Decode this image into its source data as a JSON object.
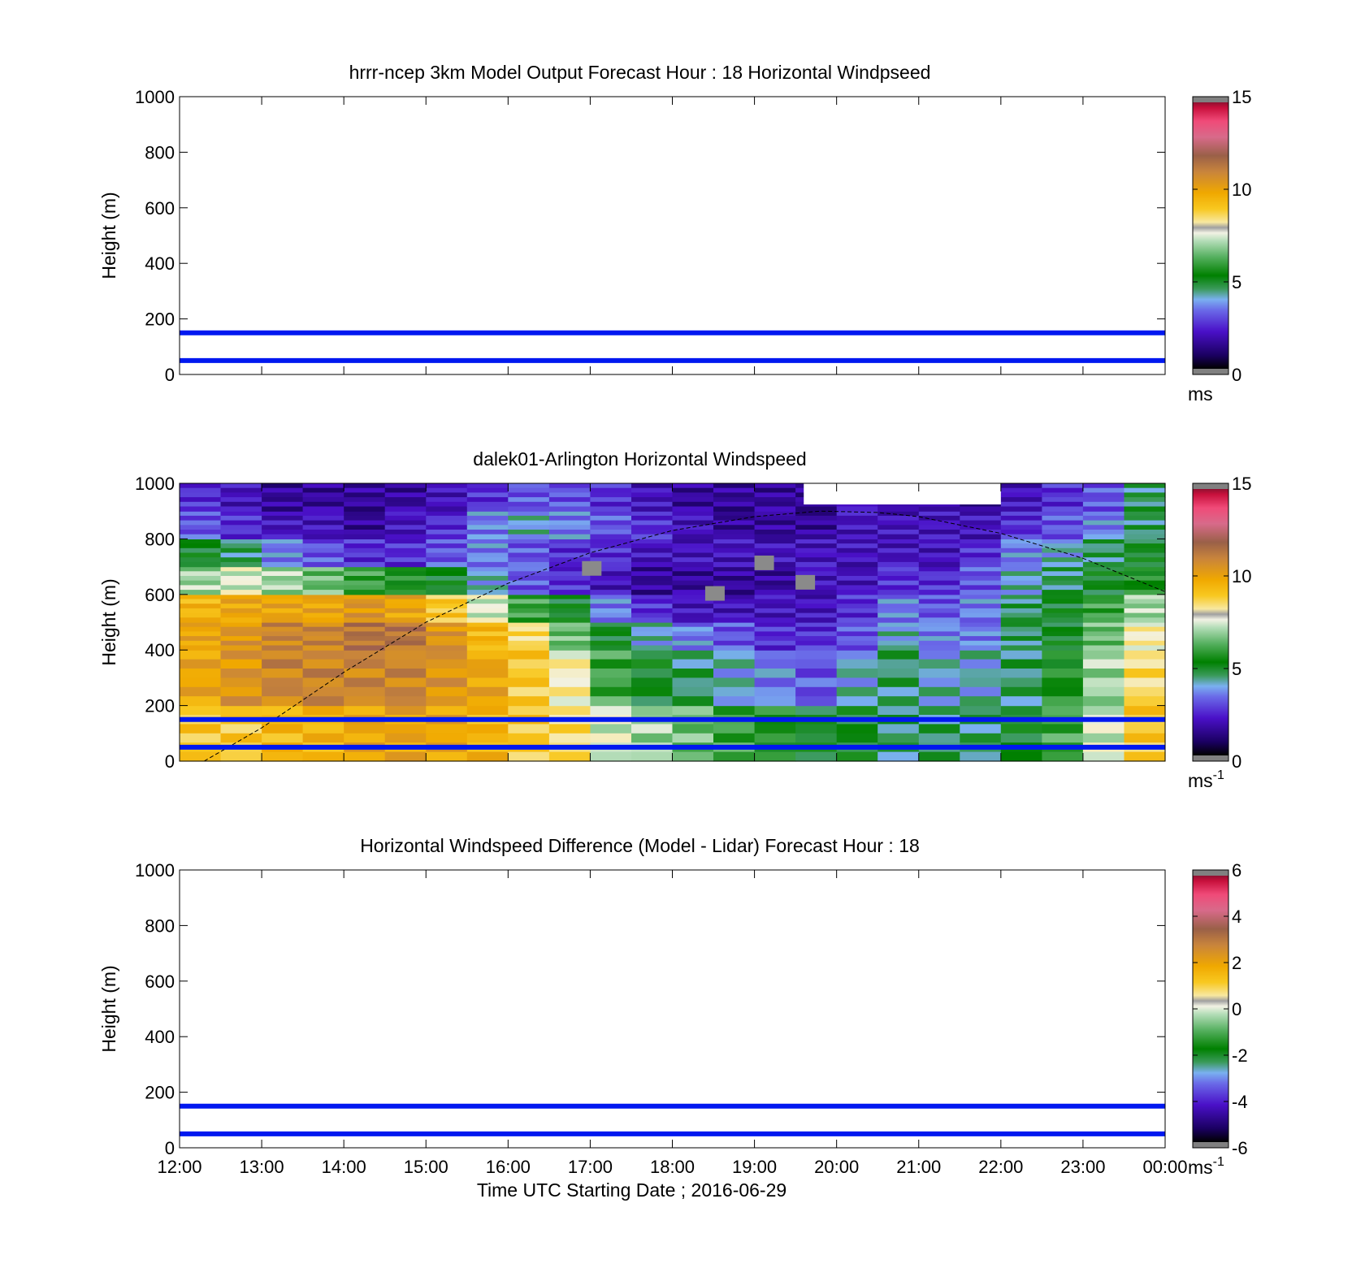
{
  "chart_data": [
    {
      "type": "heatmap",
      "title": "hrrr-ncep 3km Model Output   Forecast Hour : 18 Horizontal Windpseed",
      "ylabel": "Height (m)",
      "ylim": [
        0,
        1000
      ],
      "yticks": [
        0,
        200,
        400,
        600,
        800,
        1000
      ],
      "xlim": [
        "12:00",
        "00:00"
      ],
      "xtick_labels": [],
      "grid": false,
      "reference_lines_m": [
        50,
        150
      ],
      "colorbar": {
        "min": 0,
        "max": 15,
        "ticks": [
          "0",
          "5",
          "10",
          "15"
        ],
        "unit": "ms",
        "unit_sup": ""
      },
      "cells": []
    },
    {
      "type": "heatmap",
      "title": "dalek01-Arlington  Horizontal Windspeed",
      "ylabel": "Height (m)",
      "ylim": [
        0,
        1000
      ],
      "yticks": [
        0,
        200,
        400,
        600,
        800,
        1000
      ],
      "xlim": [
        "12:00",
        "00:00"
      ],
      "xtick_labels": [],
      "grid": false,
      "reference_lines_m": [
        50,
        150
      ],
      "colorbar": {
        "min": 0,
        "max": 15,
        "ticks": [
          "0",
          "5",
          "10",
          "15"
        ],
        "unit": "ms",
        "unit_sup": "-1"
      },
      "time_columns_h": [
        12.0,
        12.5,
        13.0,
        13.5,
        14.0,
        14.5,
        15.0,
        15.5,
        16.0,
        16.5,
        17.0,
        17.5,
        18.0,
        18.5,
        19.0,
        19.5,
        20.0,
        20.5,
        21.0,
        21.5,
        22.0,
        22.5,
        23.0,
        23.5
      ],
      "height_bands_m": [
        [
          0,
          200
        ],
        [
          200,
          400
        ],
        [
          400,
          500
        ],
        [
          500,
          600
        ],
        [
          600,
          700
        ],
        [
          700,
          800
        ],
        [
          800,
          900
        ],
        [
          900,
          1000
        ]
      ],
      "windspeed_ms": [
        [
          9,
          9,
          9.5,
          9.5,
          10,
          10,
          10,
          9.5,
          9,
          8.5,
          7.5,
          7,
          6.5,
          6,
          5.5,
          5,
          5,
          4.5,
          4.5,
          4.5,
          5,
          6,
          7.5,
          9
        ],
        [
          10,
          10.5,
          11,
          11,
          11,
          11,
          10.5,
          10,
          9,
          8,
          6,
          5,
          4.5,
          4,
          3.5,
          3,
          4,
          4.5,
          4,
          4,
          4.5,
          5.5,
          7,
          8.5
        ],
        [
          10,
          10.5,
          11,
          11,
          11.5,
          11.5,
          10.5,
          9.5,
          8.5,
          6.5,
          5,
          4,
          3.5,
          3,
          2.5,
          2.5,
          3,
          4,
          3.5,
          3.5,
          4.5,
          5,
          6.5,
          8
        ],
        [
          9.5,
          10,
          10,
          10,
          10.5,
          10,
          9,
          7.5,
          6,
          5,
          3.5,
          2.5,
          2,
          2,
          2,
          2,
          2.5,
          3.5,
          3,
          3.5,
          4.5,
          5,
          6,
          7
        ],
        [
          7,
          7.5,
          7,
          6.5,
          6,
          5.5,
          5,
          4,
          3,
          2.5,
          2,
          1.5,
          1.5,
          1.5,
          1.5,
          2,
          2,
          2.5,
          2.5,
          3,
          4,
          4.5,
          5,
          5.5
        ],
        [
          5,
          4.5,
          3.5,
          3,
          2.5,
          2.5,
          3,
          3.5,
          3,
          2.5,
          2.5,
          2,
          2,
          2,
          2,
          2,
          2,
          2,
          2,
          2.5,
          3.5,
          4,
          4.5,
          5
        ],
        [
          3,
          2.5,
          2,
          2,
          1.5,
          2,
          2.5,
          3.5,
          4,
          3.5,
          3,
          2.5,
          2,
          1.5,
          1.5,
          1.5,
          2,
          2,
          2,
          2,
          2.5,
          3,
          3.5,
          4.5
        ],
        [
          2.5,
          2,
          1.5,
          1.5,
          1.5,
          1.5,
          2,
          2.5,
          3,
          3,
          2.5,
          2,
          1.5,
          1.5,
          1.5,
          1.5,
          2,
          2,
          1.5,
          1.5,
          2,
          2.5,
          3,
          4.5
        ]
      ],
      "boundary_layer_curve_m": [
        [
          12.3,
          0
        ],
        [
          13.0,
          120
        ],
        [
          14.0,
          320
        ],
        [
          15.0,
          500
        ],
        [
          16.0,
          640
        ],
        [
          17.0,
          750
        ],
        [
          18.0,
          830
        ],
        [
          19.0,
          880
        ],
        [
          19.8,
          900
        ],
        [
          20.5,
          895
        ],
        [
          21.0,
          880
        ],
        [
          22.0,
          820
        ],
        [
          23.0,
          730
        ],
        [
          24.0,
          610
        ]
      ],
      "missing_cells": [
        [
          16.9,
          700
        ],
        [
          19.5,
          650
        ],
        [
          19.0,
          720
        ],
        [
          18.4,
          610
        ]
      ]
    },
    {
      "type": "heatmap",
      "title": "Horizontal Windspeed Difference (Model - Lidar) Forecast Hour : 18",
      "ylabel": "Height (m)",
      "xlabel": "Time UTC  Starting Date ; 2016-06-29",
      "ylim": [
        0,
        1000
      ],
      "yticks": [
        0,
        200,
        400,
        600,
        800,
        1000
      ],
      "xlim": [
        "12:00",
        "00:00"
      ],
      "xtick_labels": [
        "12:00",
        "13:00",
        "14:00",
        "15:00",
        "16:00",
        "17:00",
        "18:00",
        "19:00",
        "20:00",
        "21:00",
        "22:00",
        "23:00",
        "00:00"
      ],
      "grid": false,
      "reference_lines_m": [
        50,
        150
      ],
      "colorbar": {
        "min": -6,
        "max": 6,
        "ticks": [
          "-6",
          "-4",
          "-2",
          "0",
          "2",
          "4",
          "6"
        ],
        "unit": "ms",
        "unit_sup": "-1"
      },
      "cells": []
    }
  ]
}
